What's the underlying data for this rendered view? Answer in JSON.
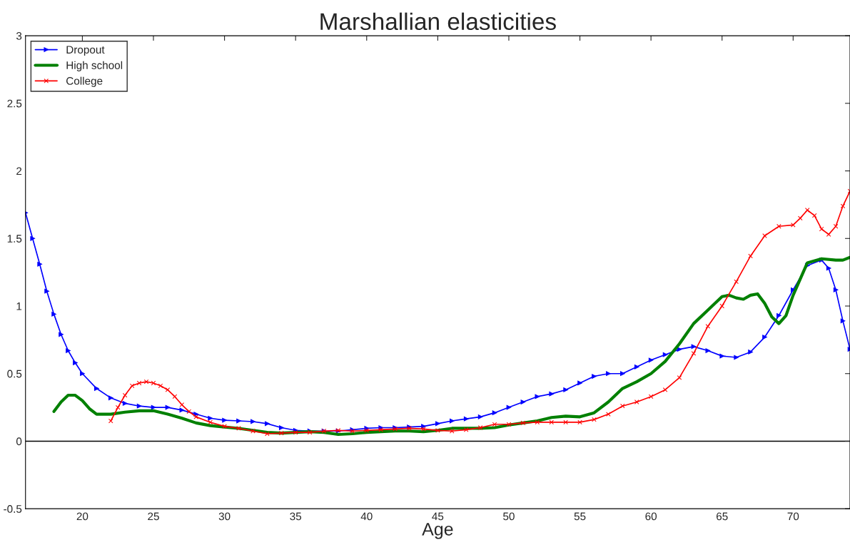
{
  "chart_data": {
    "type": "line",
    "title": "Marshallian elasticities",
    "xlabel": "Age",
    "xlim": [
      16,
      74
    ],
    "xticks": [
      20,
      25,
      30,
      35,
      40,
      45,
      50,
      55,
      60,
      65,
      70
    ],
    "ylim": [
      -0.5,
      3
    ],
    "yticks": [
      -0.5,
      0,
      0.5,
      1,
      1.5,
      2,
      2.5,
      3
    ],
    "grid": false,
    "legend": "top left",
    "ref_lines": [
      {
        "axis": "y",
        "value": 0,
        "color": "#000000",
        "line_style": "solid"
      }
    ],
    "series": [
      {
        "name": "Dropout",
        "color": "#0000ff",
        "marker": "triangle",
        "x": [
          16,
          16.5,
          17,
          17.5,
          18,
          18.5,
          19,
          19.5,
          20,
          21,
          22,
          23,
          24,
          25,
          26,
          27,
          28,
          29,
          30,
          31,
          32,
          33,
          34,
          35,
          36,
          37,
          38,
          39,
          40,
          41,
          42,
          43,
          44,
          45,
          46,
          47,
          48,
          49,
          50,
          51,
          52,
          53,
          54,
          55,
          56,
          57,
          58,
          59,
          60,
          61,
          62,
          63,
          64,
          65,
          66,
          67,
          68,
          69,
          70,
          71,
          72,
          72.5,
          73,
          73.5,
          74
        ],
        "values": [
          1.69,
          1.5,
          1.31,
          1.11,
          0.94,
          0.79,
          0.67,
          0.58,
          0.5,
          0.39,
          0.32,
          0.28,
          0.26,
          0.25,
          0.25,
          0.23,
          0.2,
          0.17,
          0.155,
          0.15,
          0.145,
          0.13,
          0.1,
          0.08,
          0.075,
          0.075,
          0.075,
          0.085,
          0.095,
          0.1,
          0.1,
          0.105,
          0.11,
          0.13,
          0.15,
          0.165,
          0.18,
          0.21,
          0.25,
          0.29,
          0.33,
          0.35,
          0.38,
          0.43,
          0.48,
          0.5,
          0.5,
          0.55,
          0.6,
          0.64,
          0.68,
          0.7,
          0.67,
          0.63,
          0.62,
          0.66,
          0.77,
          0.93,
          1.12,
          1.3,
          1.34,
          1.28,
          1.12,
          0.89,
          0.68
        ]
      },
      {
        "name": "High school",
        "color": "#008000",
        "marker": "none",
        "x": [
          18,
          18.5,
          19,
          19.5,
          20,
          20.5,
          21,
          22,
          23,
          24,
          25,
          26,
          27,
          28,
          29,
          30,
          31,
          32,
          33,
          34,
          35,
          36,
          37,
          38,
          39,
          40,
          41,
          42,
          43,
          44,
          45,
          46,
          47,
          48,
          49,
          50,
          51,
          52,
          53,
          54,
          55,
          56,
          57,
          58,
          59,
          60,
          61,
          62,
          63,
          64,
          65,
          65.5,
          66,
          66.5,
          67,
          67.5,
          68,
          68.5,
          69,
          69.5,
          70,
          71,
          72,
          73,
          73.5,
          74
        ],
        "values": [
          0.22,
          0.29,
          0.34,
          0.34,
          0.3,
          0.24,
          0.2,
          0.2,
          0.215,
          0.225,
          0.225,
          0.2,
          0.17,
          0.135,
          0.115,
          0.105,
          0.095,
          0.08,
          0.065,
          0.06,
          0.065,
          0.07,
          0.065,
          0.05,
          0.055,
          0.065,
          0.07,
          0.075,
          0.075,
          0.07,
          0.08,
          0.095,
          0.095,
          0.095,
          0.1,
          0.12,
          0.135,
          0.15,
          0.175,
          0.185,
          0.18,
          0.21,
          0.29,
          0.39,
          0.44,
          0.5,
          0.59,
          0.72,
          0.87,
          0.97,
          1.07,
          1.08,
          1.06,
          1.05,
          1.08,
          1.09,
          1.02,
          0.92,
          0.87,
          0.93,
          1.08,
          1.32,
          1.35,
          1.34,
          1.34,
          1.36
        ]
      },
      {
        "name": "College",
        "color": "#ff0000",
        "marker": "cross",
        "x": [
          22,
          22.5,
          23,
          23.5,
          24,
          24.5,
          25,
          25.5,
          26,
          26.5,
          27,
          27.5,
          28,
          29,
          30,
          31,
          32,
          33,
          34,
          35,
          36,
          37,
          38,
          39,
          40,
          41,
          42,
          43,
          44,
          45,
          46,
          47,
          48,
          49,
          50,
          51,
          52,
          53,
          54,
          55,
          56,
          57,
          58,
          59,
          60,
          61,
          62,
          63,
          64,
          65,
          66,
          67,
          68,
          69,
          70,
          70.5,
          71,
          71.5,
          72,
          72.5,
          73,
          73.5,
          74
        ],
        "values": [
          0.15,
          0.25,
          0.34,
          0.41,
          0.43,
          0.44,
          0.43,
          0.41,
          0.38,
          0.33,
          0.27,
          0.22,
          0.18,
          0.14,
          0.11,
          0.095,
          0.075,
          0.055,
          0.06,
          0.065,
          0.065,
          0.075,
          0.08,
          0.075,
          0.08,
          0.085,
          0.09,
          0.095,
          0.09,
          0.08,
          0.075,
          0.085,
          0.1,
          0.125,
          0.125,
          0.135,
          0.14,
          0.14,
          0.14,
          0.14,
          0.16,
          0.2,
          0.26,
          0.29,
          0.33,
          0.38,
          0.47,
          0.65,
          0.85,
          1.0,
          1.18,
          1.37,
          1.52,
          1.59,
          1.6,
          1.65,
          1.71,
          1.67,
          1.57,
          1.53,
          1.59,
          1.74,
          1.85
        ]
      }
    ]
  }
}
